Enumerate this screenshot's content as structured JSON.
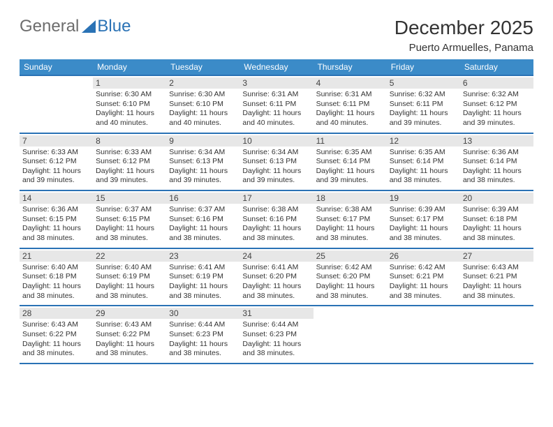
{
  "logo": {
    "word1": "General",
    "word2": "Blue"
  },
  "title": "December 2025",
  "location": "Puerto Armuelles, Panama",
  "colors": {
    "header_bg": "#3b8bc8",
    "border": "#2a72b5",
    "daynum_bg": "#e7e7e7",
    "logo_gray": "#6d6d6d",
    "logo_blue": "#2a72b5"
  },
  "weekdays": [
    "Sunday",
    "Monday",
    "Tuesday",
    "Wednesday",
    "Thursday",
    "Friday",
    "Saturday"
  ],
  "weeks": [
    [
      null,
      {
        "n": "1",
        "sunrise": "6:30 AM",
        "sunset": "6:10 PM",
        "daylight": "11 hours and 40 minutes."
      },
      {
        "n": "2",
        "sunrise": "6:30 AM",
        "sunset": "6:10 PM",
        "daylight": "11 hours and 40 minutes."
      },
      {
        "n": "3",
        "sunrise": "6:31 AM",
        "sunset": "6:11 PM",
        "daylight": "11 hours and 40 minutes."
      },
      {
        "n": "4",
        "sunrise": "6:31 AM",
        "sunset": "6:11 PM",
        "daylight": "11 hours and 40 minutes."
      },
      {
        "n": "5",
        "sunrise": "6:32 AM",
        "sunset": "6:11 PM",
        "daylight": "11 hours and 39 minutes."
      },
      {
        "n": "6",
        "sunrise": "6:32 AM",
        "sunset": "6:12 PM",
        "daylight": "11 hours and 39 minutes."
      }
    ],
    [
      {
        "n": "7",
        "sunrise": "6:33 AM",
        "sunset": "6:12 PM",
        "daylight": "11 hours and 39 minutes."
      },
      {
        "n": "8",
        "sunrise": "6:33 AM",
        "sunset": "6:12 PM",
        "daylight": "11 hours and 39 minutes."
      },
      {
        "n": "9",
        "sunrise": "6:34 AM",
        "sunset": "6:13 PM",
        "daylight": "11 hours and 39 minutes."
      },
      {
        "n": "10",
        "sunrise": "6:34 AM",
        "sunset": "6:13 PM",
        "daylight": "11 hours and 39 minutes."
      },
      {
        "n": "11",
        "sunrise": "6:35 AM",
        "sunset": "6:14 PM",
        "daylight": "11 hours and 39 minutes."
      },
      {
        "n": "12",
        "sunrise": "6:35 AM",
        "sunset": "6:14 PM",
        "daylight": "11 hours and 38 minutes."
      },
      {
        "n": "13",
        "sunrise": "6:36 AM",
        "sunset": "6:14 PM",
        "daylight": "11 hours and 38 minutes."
      }
    ],
    [
      {
        "n": "14",
        "sunrise": "6:36 AM",
        "sunset": "6:15 PM",
        "daylight": "11 hours and 38 minutes."
      },
      {
        "n": "15",
        "sunrise": "6:37 AM",
        "sunset": "6:15 PM",
        "daylight": "11 hours and 38 minutes."
      },
      {
        "n": "16",
        "sunrise": "6:37 AM",
        "sunset": "6:16 PM",
        "daylight": "11 hours and 38 minutes."
      },
      {
        "n": "17",
        "sunrise": "6:38 AM",
        "sunset": "6:16 PM",
        "daylight": "11 hours and 38 minutes."
      },
      {
        "n": "18",
        "sunrise": "6:38 AM",
        "sunset": "6:17 PM",
        "daylight": "11 hours and 38 minutes."
      },
      {
        "n": "19",
        "sunrise": "6:39 AM",
        "sunset": "6:17 PM",
        "daylight": "11 hours and 38 minutes."
      },
      {
        "n": "20",
        "sunrise": "6:39 AM",
        "sunset": "6:18 PM",
        "daylight": "11 hours and 38 minutes."
      }
    ],
    [
      {
        "n": "21",
        "sunrise": "6:40 AM",
        "sunset": "6:18 PM",
        "daylight": "11 hours and 38 minutes."
      },
      {
        "n": "22",
        "sunrise": "6:40 AM",
        "sunset": "6:19 PM",
        "daylight": "11 hours and 38 minutes."
      },
      {
        "n": "23",
        "sunrise": "6:41 AM",
        "sunset": "6:19 PM",
        "daylight": "11 hours and 38 minutes."
      },
      {
        "n": "24",
        "sunrise": "6:41 AM",
        "sunset": "6:20 PM",
        "daylight": "11 hours and 38 minutes."
      },
      {
        "n": "25",
        "sunrise": "6:42 AM",
        "sunset": "6:20 PM",
        "daylight": "11 hours and 38 minutes."
      },
      {
        "n": "26",
        "sunrise": "6:42 AM",
        "sunset": "6:21 PM",
        "daylight": "11 hours and 38 minutes."
      },
      {
        "n": "27",
        "sunrise": "6:43 AM",
        "sunset": "6:21 PM",
        "daylight": "11 hours and 38 minutes."
      }
    ],
    [
      {
        "n": "28",
        "sunrise": "6:43 AM",
        "sunset": "6:22 PM",
        "daylight": "11 hours and 38 minutes."
      },
      {
        "n": "29",
        "sunrise": "6:43 AM",
        "sunset": "6:22 PM",
        "daylight": "11 hours and 38 minutes."
      },
      {
        "n": "30",
        "sunrise": "6:44 AM",
        "sunset": "6:23 PM",
        "daylight": "11 hours and 38 minutes."
      },
      {
        "n": "31",
        "sunrise": "6:44 AM",
        "sunset": "6:23 PM",
        "daylight": "11 hours and 38 minutes."
      },
      null,
      null,
      null
    ]
  ],
  "labels": {
    "sunrise_prefix": "Sunrise: ",
    "sunset_prefix": "Sunset: ",
    "daylight_prefix": "Daylight: "
  }
}
